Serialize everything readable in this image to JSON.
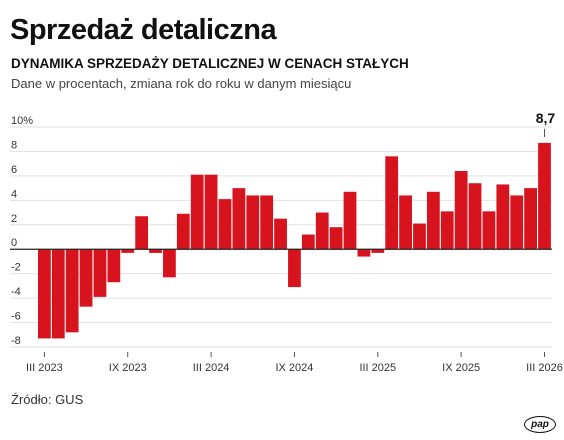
{
  "header": {
    "title": "Sprzedaż detaliczna",
    "subtitle": "DYNAMIKA SPRZEDAŻY DETALICZNEJ W CENACH STAŁYCH",
    "description": "Dane w procentach, zmiana rok do roku w danym miesiącu"
  },
  "footer": {
    "source": "Źródło: GUS",
    "logo_text": "pap"
  },
  "colors": {
    "bar": "#d7141e",
    "grid": "#e2e2e2",
    "axis": "#222222"
  },
  "chart_data": {
    "type": "bar",
    "title": "DYNAMIKA SPRZEDAŻY DETALICZNEJ W CENACH STAŁYCH",
    "ylabel": "",
    "xlabel": "",
    "ylim": [
      -8,
      10
    ],
    "y_ticks": [
      "10%",
      "8",
      "6",
      "4",
      "2",
      "0",
      "-2",
      "-4",
      "-6",
      "-8"
    ],
    "y_tick_values": [
      10,
      8,
      6,
      4,
      2,
      0,
      -2,
      -4,
      -6,
      -8
    ],
    "x_tick_labels": [
      "III 2023",
      "IX 2023",
      "III 2024",
      "IX 2024",
      "III 2025",
      "IX 2025",
      "III 2026"
    ],
    "categories": [
      "III 2023",
      "IV 2023",
      "V 2023",
      "VI 2023",
      "VII 2023",
      "VIII 2023",
      "IX 2023",
      "X 2023",
      "XI 2023",
      "XII 2023",
      "I 2024",
      "II 2024",
      "III 2024",
      "IV 2024",
      "V 2024",
      "VI 2024",
      "VII 2024",
      "VIII 2024",
      "IX 2024",
      "X 2024",
      "XI 2024",
      "XII 2024",
      "I 2025",
      "II 2025",
      "III 2025",
      "IV 2025",
      "V 2025",
      "VI 2025",
      "VII 2025",
      "VIII 2025",
      "IX 2025",
      "X 2025",
      "XI 2025",
      "XII 2025",
      "I 2026",
      "II 2026",
      "III 2026"
    ],
    "values": [
      -7.3,
      -7.3,
      -6.8,
      -4.7,
      -3.9,
      -2.7,
      -0.3,
      2.7,
      -0.3,
      -2.3,
      2.9,
      6.1,
      6.1,
      4.1,
      5.0,
      4.4,
      4.4,
      2.5,
      -3.1,
      1.2,
      3.0,
      1.8,
      4.7,
      -0.6,
      -0.3,
      7.6,
      4.4,
      2.1,
      4.7,
      3.1,
      6.4,
      5.4,
      3.1,
      5.3,
      4.4,
      5.0,
      8.7
    ],
    "annotation": {
      "label": "8,7",
      "category": "III 2026"
    },
    "grid": true,
    "legend": "none"
  }
}
